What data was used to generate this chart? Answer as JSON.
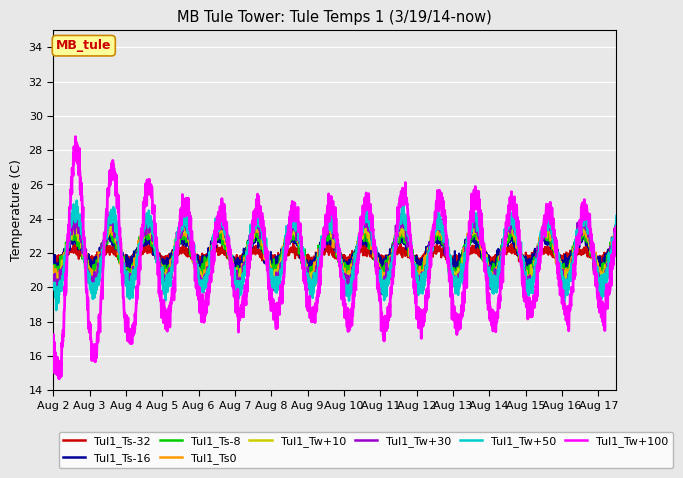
{
  "title": "MB Tule Tower: Tule Temps 1 (3/19/14-now)",
  "ylabel": "Temperature (C)",
  "ylim": [
    14,
    35
  ],
  "yticks": [
    14,
    16,
    18,
    20,
    22,
    24,
    26,
    28,
    30,
    32,
    34
  ],
  "background_color": "#e8e8e8",
  "plot_bg_color": "#e8e8e8",
  "annotation": {
    "text": "MB_tule",
    "bg": "#ffff99",
    "border": "#cc8800",
    "text_color": "#cc0000"
  },
  "series": {
    "Tul1_Ts-32": {
      "color": "#cc0000",
      "lw": 1.5,
      "zorder": 3
    },
    "Tul1_Ts-16": {
      "color": "#000099",
      "lw": 1.5,
      "zorder": 4
    },
    "Tul1_Ts-8": {
      "color": "#00cc00",
      "lw": 1.5,
      "zorder": 5
    },
    "Tul1_Ts0": {
      "color": "#ff9900",
      "lw": 1.5,
      "zorder": 6
    },
    "Tul1_Tw+10": {
      "color": "#cccc00",
      "lw": 1.5,
      "zorder": 7
    },
    "Tul1_Tw+30": {
      "color": "#9900cc",
      "lw": 1.5,
      "zorder": 8
    },
    "Tul1_Tw+50": {
      "color": "#00cccc",
      "lw": 1.8,
      "zorder": 9
    },
    "Tul1_Tw+100": {
      "color": "#ff00ff",
      "lw": 2.0,
      "zorder": 10
    }
  },
  "series_order": [
    "Tul1_Ts-32",
    "Tul1_Ts-16",
    "Tul1_Ts-8",
    "Tul1_Ts0",
    "Tul1_Tw+10",
    "Tul1_Tw+30",
    "Tul1_Tw+50",
    "Tul1_Tw+100"
  ],
  "day_labels": [
    "Aug 2",
    "Aug 3",
    "Aug 4",
    "Aug 5",
    "Aug 6",
    "Aug 7",
    "Aug 8",
    "Aug 9",
    "Aug 10",
    "Aug 11",
    "Aug 12",
    "Aug 13",
    "Aug 14",
    "Aug 15",
    "Aug 16",
    "Aug 17"
  ],
  "legend_row1": [
    "Tul1_Ts-32",
    "Tul1_Ts-16",
    "Tul1_Ts-8",
    "Tul1_Ts0",
    "Tul1_Tw+10",
    "Tul1_Tw+30"
  ],
  "legend_row2": [
    "Tul1_Tw+50",
    "Tul1_Tw+100"
  ]
}
